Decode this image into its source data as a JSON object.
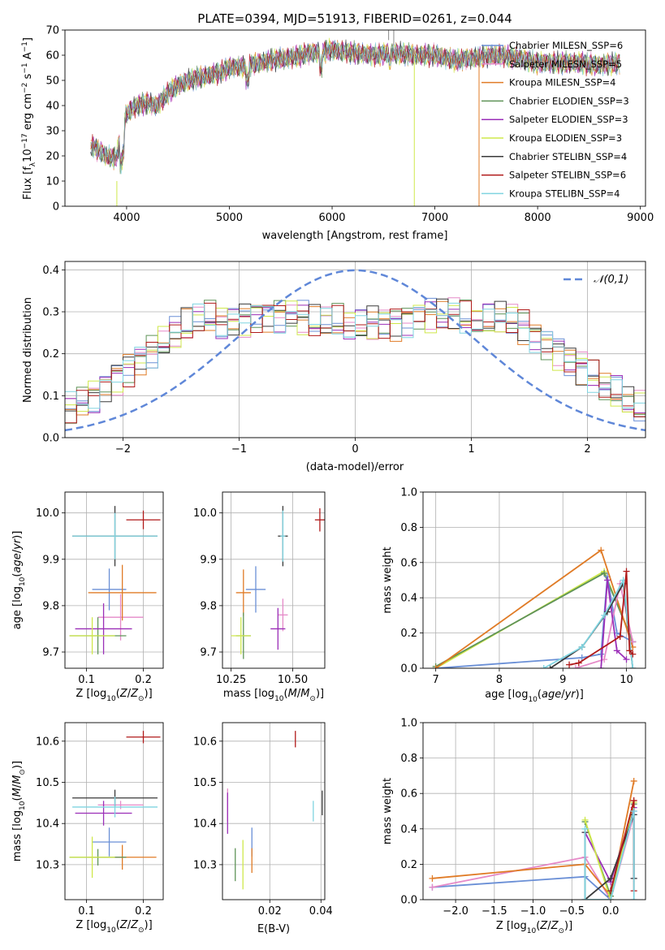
{
  "figure_title": "PLATE=0394, MJD=51913, FIBERID=0261, z=0.044",
  "colors": {
    "Chabrier MILES": "#6a8fd6",
    "Salpeter MILES": "#e58ac8",
    "Kroupa MILES": "#e07b26",
    "Chabrier ELODIE": "#5f9358",
    "Salpeter ELODIE": "#9b2fb8",
    "Kroupa ELODIE": "#cfe84b",
    "Chabrier STELIB": "#3a3a3a",
    "Salpeter STELIB": "#b01a1a",
    "Kroupa STELIB": "#7fd4e0",
    "gauss": "#5f87d8",
    "grid": "#b0b0b0"
  },
  "chart_data": [
    {
      "id": "spectrum",
      "type": "line",
      "title": "PLATE=0394, MJD=51913, FIBERID=0261, z=0.044",
      "xlabel": "wavelength [Angstrom, rest frame]",
      "ylabel": "Flux [f_λ 10^-17 erg cm^-2 s^-1 A^-1]",
      "xlim": [
        3400,
        9050
      ],
      "ylim": [
        0,
        70
      ],
      "xticks": [
        4000,
        5000,
        6000,
        7000,
        8000,
        9000
      ],
      "yticks": [
        0,
        10,
        20,
        30,
        40,
        50,
        60,
        70
      ],
      "grid": false,
      "legend_position": "right",
      "continuum": {
        "x": [
          3650,
          3700,
          3800,
          3900,
          3950,
          4000,
          4100,
          4200,
          4300,
          4400,
          4500,
          4600,
          4700,
          4800,
          4900,
          5000,
          5200,
          5400,
          5600,
          5800,
          6000,
          6200,
          6400,
          6600,
          6800,
          7000,
          7200,
          7400,
          7600,
          7800,
          8000,
          8200,
          8400,
          8600,
          8800
        ],
        "y": [
          24,
          23,
          20,
          19,
          30,
          37,
          40,
          41,
          40,
          45,
          48,
          50,
          51,
          52,
          53,
          55,
          56,
          58,
          59,
          61,
          62,
          61,
          60,
          61,
          60,
          60,
          58,
          59,
          60,
          59,
          57,
          57,
          57,
          56,
          57
        ]
      },
      "series": [
        {
          "name": "Chabrier MILES",
          "label": "N_SSP=6"
        },
        {
          "name": "Salpeter MILES",
          "label": "N_SSP=5"
        },
        {
          "name": "Kroupa MILES",
          "label": "N_SSP=4"
        },
        {
          "name": "Chabrier ELODIE",
          "label": "N_SSP=3"
        },
        {
          "name": "Salpeter ELODIE",
          "label": "N_SSP=3"
        },
        {
          "name": "Kroupa ELODIE",
          "label": "N_SSP=3"
        },
        {
          "name": "Chabrier STELIB",
          "label": "N_SSP=4"
        },
        {
          "name": "Salpeter STELIB",
          "label": "N_SSP=6"
        },
        {
          "name": "Kroupa STELIB",
          "label": "N_SSP=4"
        }
      ]
    },
    {
      "id": "residuals",
      "type": "histogram",
      "xlabel": "(data-model)/error",
      "ylabel": "Normed distribution",
      "xlim": [
        -2.5,
        2.5
      ],
      "ylim": [
        0,
        0.42
      ],
      "xticks": [
        -2,
        -1,
        0,
        1,
        2
      ],
      "yticks": [
        0.0,
        0.1,
        0.2,
        0.3,
        0.4
      ],
      "grid": true,
      "legend": [
        {
          "name": "𝒩(0,1)",
          "style": "dashed"
        }
      ],
      "legend_position": "top-right",
      "bin_width": 0.1,
      "mean_curve": [
        0.06,
        0.07,
        0.08,
        0.085,
        0.095,
        0.105,
        0.115,
        0.125,
        0.135,
        0.15,
        0.16,
        0.17,
        0.18,
        0.19,
        0.2,
        0.21,
        0.22,
        0.23,
        0.24,
        0.25,
        0.26,
        0.27,
        0.28,
        0.285,
        0.29,
        0.29,
        0.28,
        0.28,
        0.28,
        0.28,
        0.29,
        0.29,
        0.3,
        0.3,
        0.3,
        0.3,
        0.3,
        0.3,
        0.3,
        0.295,
        0.29,
        0.29,
        0.28,
        0.28,
        0.28,
        0.28,
        0.28,
        0.275,
        0.27,
        0.265,
        0.26,
        0.25,
        0.24,
        0.23,
        0.21,
        0.2,
        0.19,
        0.18,
        0.17,
        0.16,
        0.15,
        0.14,
        0.13,
        0.12,
        0.11,
        0.1,
        0.095,
        0.09,
        0.08,
        0.075,
        0.07,
        0.065,
        0.06,
        0.055,
        0.05,
        0.05,
        0.045,
        0.045,
        0.045,
        0.04,
        0.04,
        0.04,
        0.04,
        0.04,
        0.04,
        0.04,
        0.04,
        0.04,
        0.04,
        0.04,
        0.04,
        0.04,
        0.04,
        0.04,
        0.04,
        0.04,
        0.04,
        0.04,
        0.04,
        0.04
      ]
    },
    {
      "id": "age_vs_Z",
      "type": "errorbar",
      "xlabel": "Z [log10(Z/Z_sun)]",
      "ylabel": "age  [log10(age/yr)]",
      "xlim": [
        0.062,
        0.235
      ],
      "ylim": [
        9.665,
        10.045
      ],
      "xticks": [
        0.1,
        0.2
      ],
      "yticks": [
        9.7,
        9.8,
        9.9,
        10.0
      ],
      "grid": true,
      "points": [
        {
          "series": "Chabrier MILES",
          "x": 0.14,
          "xerr": 0.03,
          "y": 9.835,
          "yerr": 0.045
        },
        {
          "series": "Salpeter MILES",
          "x": 0.16,
          "xerr": 0.04,
          "y": 9.775,
          "yerr": 0.05
        },
        {
          "series": "Kroupa MILES",
          "x": 0.163,
          "xerr": 0.06,
          "y": 9.828,
          "yerr": 0.06
        },
        {
          "series": "Chabrier ELODIE",
          "x": 0.12,
          "xerr": 0.05,
          "y": 9.735,
          "yerr": 0.04
        },
        {
          "series": "Salpeter ELODIE",
          "x": 0.13,
          "xerr": 0.05,
          "y": 9.75,
          "yerr": 0.055
        },
        {
          "series": "Kroupa ELODIE",
          "x": 0.11,
          "xerr": 0.04,
          "y": 9.735,
          "yerr": 0.04
        },
        {
          "series": "Chabrier STELIB",
          "x": 0.15,
          "xerr": 0.075,
          "y": 9.95,
          "yerr": 0.065
        },
        {
          "series": "Salpeter STELIB",
          "x": 0.2,
          "xerr": 0.03,
          "y": 9.985,
          "yerr": 0.02
        },
        {
          "series": "Kroupa STELIB",
          "x": 0.15,
          "xerr": 0.075,
          "y": 9.95,
          "yerr": 0.05
        }
      ]
    },
    {
      "id": "age_vs_mass",
      "type": "errorbar",
      "xlabel": "mass [log10(M/M_sun)]",
      "ylabel": "",
      "xlim": [
        10.215,
        10.63
      ],
      "ylim": [
        9.665,
        10.045
      ],
      "xticks": [
        10.25,
        10.5
      ],
      "xtick_labels": [
        "10.25",
        "10.50"
      ],
      "yticks": [
        9.7,
        9.8,
        9.9,
        10.0
      ],
      "grid": true,
      "points": [
        {
          "series": "Chabrier MILES",
          "x": 10.35,
          "xerr": 0.04,
          "y": 9.835,
          "yerr": 0.05
        },
        {
          "series": "Salpeter MILES",
          "x": 10.46,
          "xerr": 0.02,
          "y": 9.78,
          "yerr": 0.035
        },
        {
          "series": "Kroupa MILES",
          "x": 10.3,
          "xerr": 0.03,
          "y": 9.828,
          "yerr": 0.05
        },
        {
          "series": "Chabrier ELODIE",
          "x": 10.3,
          "xerr": 0.03,
          "y": 9.735,
          "yerr": 0.05
        },
        {
          "series": "Salpeter ELODIE",
          "x": 10.44,
          "xerr": 0.03,
          "y": 9.75,
          "yerr": 0.045
        },
        {
          "series": "Kroupa ELODIE",
          "x": 10.29,
          "xerr": 0.04,
          "y": 9.735,
          "yerr": 0.04
        },
        {
          "series": "Chabrier STELIB",
          "x": 10.46,
          "xerr": 0.02,
          "y": 9.95,
          "yerr": 0.065
        },
        {
          "series": "Salpeter STELIB",
          "x": 10.61,
          "xerr": 0.02,
          "y": 9.985,
          "yerr": 0.025
        },
        {
          "series": "Kroupa STELIB",
          "x": 10.46,
          "xerr": 0.01,
          "y": 9.95,
          "yerr": 0.055
        }
      ]
    },
    {
      "id": "weight_vs_age",
      "type": "line",
      "xlabel": "age  [log10(age/yr)]",
      "ylabel": "mass weight",
      "xlim": [
        6.8,
        10.3
      ],
      "ylim": [
        0,
        1.0
      ],
      "xticks": [
        7,
        8,
        9,
        10
      ],
      "yticks": [
        0.0,
        0.2,
        0.4,
        0.6,
        0.8,
        1.0
      ],
      "grid": true,
      "series": [
        {
          "name": "Kroupa ELODIE",
          "x": [
            7.0,
            9.65,
            10.1
          ],
          "y": [
            0.0,
            0.55,
            0.15
          ]
        },
        {
          "name": "Chabrier ELODIE",
          "x": [
            7.0,
            9.65,
            10.1
          ],
          "y": [
            0.01,
            0.54,
            0.15
          ]
        },
        {
          "name": "Chabrier MILES",
          "x": [
            7.0,
            9.3,
            9.6,
            9.7,
            9.85,
            10.1
          ],
          "y": [
            0.0,
            0.06,
            0.08,
            0.52,
            0.2,
            0.15
          ]
        },
        {
          "name": "Kroupa MILES",
          "x": [
            7.0,
            9.6,
            10.1
          ],
          "y": [
            0.0,
            0.67,
            0.12
          ]
        },
        {
          "name": "Salpeter MILES",
          "x": [
            9.2,
            9.65,
            9.9,
            10.1
          ],
          "y": [
            0.0,
            0.05,
            0.48,
            0.15
          ]
        },
        {
          "name": "Salpeter ELODIE",
          "x": [
            9.6,
            9.7,
            9.85,
            10.0
          ],
          "y": [
            0.0,
            0.5,
            0.1,
            0.05
          ]
        },
        {
          "name": "Chabrier STELIB",
          "x": [
            8.8,
            9.3,
            9.7,
            9.95,
            10.1
          ],
          "y": [
            0.0,
            0.12,
            0.32,
            0.48,
            0.0
          ]
        },
        {
          "name": "Kroupa STELIB",
          "x": [
            8.7,
            9.3,
            9.65,
            9.95,
            10.1
          ],
          "y": [
            0.0,
            0.12,
            0.3,
            0.5,
            0.0
          ]
        },
        {
          "name": "Salpeter STELIB",
          "x": [
            9.1,
            9.25,
            9.9,
            10.0,
            10.05,
            10.1
          ],
          "y": [
            0.02,
            0.03,
            0.18,
            0.55,
            0.1,
            0.08
          ]
        }
      ]
    },
    {
      "id": "mass_vs_Z",
      "type": "errorbar",
      "xlabel": "Z [log10(Z/Z_sun)]",
      "ylabel": "mass [log10(M/M_sun)]",
      "xlim": [
        0.062,
        0.235
      ],
      "ylim": [
        10.215,
        10.645
      ],
      "xticks": [
        0.1,
        0.2
      ],
      "yticks": [
        10.3,
        10.4,
        10.5,
        10.6
      ],
      "grid": true,
      "points": [
        {
          "series": "Chabrier MILES",
          "x": 0.14,
          "xerr": 0.03,
          "y": 10.355,
          "yerr": 0.035
        },
        {
          "series": "Salpeter MILES",
          "x": 0.16,
          "xerr": 0.04,
          "y": 10.445,
          "yerr": 0.01
        },
        {
          "series": "Kroupa MILES",
          "x": 0.163,
          "xerr": 0.06,
          "y": 10.318,
          "yerr": 0.03
        },
        {
          "series": "Chabrier ELODIE",
          "x": 0.12,
          "xerr": 0.05,
          "y": 10.318,
          "yerr": 0.02
        },
        {
          "series": "Salpeter ELODIE",
          "x": 0.13,
          "xerr": 0.05,
          "y": 10.425,
          "yerr": 0.03
        },
        {
          "series": "Kroupa ELODIE",
          "x": 0.11,
          "xerr": 0.04,
          "y": 10.318,
          "yerr": 0.05
        },
        {
          "series": "Chabrier STELIB",
          "x": 0.15,
          "xerr": 0.075,
          "y": 10.462,
          "yerr": 0.02
        },
        {
          "series": "Salpeter STELIB",
          "x": 0.2,
          "xerr": 0.03,
          "y": 10.61,
          "yerr": 0.015
        },
        {
          "series": "Kroupa STELIB",
          "x": 0.15,
          "xerr": 0.075,
          "y": 10.44,
          "yerr": 0.025
        }
      ]
    },
    {
      "id": "mass_vs_ebv",
      "type": "errorbar",
      "xlabel": "E(B-V)",
      "ylabel": "",
      "xlim": [
        0.0015,
        0.0415
      ],
      "ylim": [
        10.215,
        10.645
      ],
      "xticks": [
        0.02,
        0.04
      ],
      "yticks": [
        10.3,
        10.4,
        10.5,
        10.6
      ],
      "grid": true,
      "points": [
        {
          "series": "Chabrier MILES",
          "x": 0.013,
          "xerr": 0.0,
          "y": 10.355,
          "yerr": 0.035
        },
        {
          "series": "Salpeter MILES",
          "x": 0.0035,
          "xerr": 0.0,
          "y": 10.445,
          "yerr": 0.04
        },
        {
          "series": "Kroupa MILES",
          "x": 0.013,
          "xerr": 0.0,
          "y": 10.31,
          "yerr": 0.03
        },
        {
          "series": "Chabrier ELODIE",
          "x": 0.0065,
          "xerr": 0.0,
          "y": 10.3,
          "yerr": 0.04
        },
        {
          "series": "Salpeter ELODIE",
          "x": 0.0035,
          "xerr": 0.0,
          "y": 10.425,
          "yerr": 0.05
        },
        {
          "series": "Kroupa ELODIE",
          "x": 0.0095,
          "xerr": 0.0,
          "y": 10.3,
          "yerr": 0.06
        },
        {
          "series": "Chabrier STELIB",
          "x": 0.0405,
          "xerr": 0.0,
          "y": 10.45,
          "yerr": 0.03
        },
        {
          "series": "Salpeter STELIB",
          "x": 0.03,
          "xerr": 0.0,
          "y": 10.605,
          "yerr": 0.02
        },
        {
          "series": "Kroupa STELIB",
          "x": 0.037,
          "xerr": 0.0,
          "y": 10.43,
          "yerr": 0.025
        }
      ]
    },
    {
      "id": "weight_vs_Z",
      "type": "line",
      "xlabel": "Z [log10(Z/Z_sun)]",
      "ylabel": "mass weight",
      "xlim": [
        -2.42,
        0.45
      ],
      "ylim": [
        0,
        1.0
      ],
      "xticks": [
        -2.0,
        -1.5,
        -1.0,
        -0.5,
        0.0
      ],
      "xtick_labels": [
        "−2.0",
        "−1.5",
        "−1.0",
        "−0.5",
        "0.0"
      ],
      "yticks": [
        0.0,
        0.2,
        0.4,
        0.6,
        0.8,
        1.0
      ],
      "grid": true,
      "series": [
        {
          "name": "Chabrier MILES",
          "x": [
            -2.3,
            -0.33,
            0.0,
            0.3,
            0.3
          ],
          "y": [
            0.07,
            0.13,
            0.0,
            0.5,
            0.12
          ]
        },
        {
          "name": "Salpeter MILES",
          "x": [
            -2.3,
            -0.33,
            0.0,
            0.3
          ],
          "y": [
            0.07,
            0.24,
            0.0,
            0.48
          ]
        },
        {
          "name": "Kroupa MILES",
          "x": [
            -2.3,
            -0.33,
            0.0,
            0.3
          ],
          "y": [
            0.12,
            0.2,
            0.02,
            0.67
          ]
        },
        {
          "name": "Chabrier ELODIE",
          "x": [
            -0.33,
            0.0,
            0.3
          ],
          "y": [
            0.44,
            0.02,
            0.54
          ]
        },
        {
          "name": "Salpeter ELODIE",
          "x": [
            -0.33,
            0.0,
            0.3
          ],
          "y": [
            0.38,
            0.1,
            0.52
          ]
        },
        {
          "name": "Kroupa ELODIE",
          "x": [
            -0.33,
            0.0,
            0.3
          ],
          "y": [
            0.45,
            0.0,
            0.55
          ]
        },
        {
          "name": "Chabrier STELIB",
          "x": [
            -0.33,
            -0.33,
            0.0,
            0.3,
            0.3
          ],
          "y": [
            0.38,
            0.0,
            0.12,
            0.48,
            0.12
          ]
        },
        {
          "name": "Salpeter STELIB",
          "x": [
            0.0,
            0.3,
            0.3
          ],
          "y": [
            0.05,
            0.56,
            0.05
          ]
        },
        {
          "name": "Kroupa STELIB",
          "x": [
            -0.33,
            -0.33,
            0.0,
            0.3,
            0.3
          ],
          "y": [
            0.4,
            0.0,
            0.0,
            0.5,
            0.0
          ]
        }
      ]
    }
  ]
}
